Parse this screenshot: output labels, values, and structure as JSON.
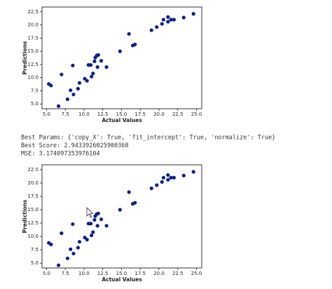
{
  "chart_data": [
    {
      "type": "scatter",
      "xlabel": "Actual Values",
      "ylabel": "Predictions",
      "color": "#0b1f8f",
      "x": [
        5.3,
        5.6,
        6.6,
        7.0,
        7.8,
        8.2,
        8.5,
        8.6,
        9.2,
        9.4,
        10.1,
        10.4,
        10.6,
        10.9,
        11.0,
        11.2,
        11.4,
        11.5,
        11.7,
        11.9,
        11.8,
        12.3,
        13.0,
        14.8,
        16.0,
        16.5,
        16.8,
        19.0,
        19.7,
        20.4,
        20.6,
        21.2,
        21.2,
        21.6,
        22.0,
        23.3,
        24.6
      ],
      "values": [
        8.8,
        8.5,
        4.6,
        10.6,
        5.9,
        7.6,
        12.3,
        6.8,
        7.9,
        9.0,
        9.8,
        9.4,
        12.4,
        12.4,
        10.2,
        10.8,
        13.1,
        13.8,
        14.2,
        14.3,
        12.0,
        13.2,
        12.0,
        15.0,
        18.3,
        16.1,
        16.3,
        19.0,
        19.6,
        20.2,
        21.0,
        21.5,
        20.6,
        21.0,
        21.0,
        21.4,
        22.1
      ],
      "xlim": [
        4.4,
        25.7
      ],
      "ylim": [
        4.1,
        23.4
      ],
      "xticks": [
        {
          "value": 5,
          "label": "5.0"
        },
        {
          "value": 7.5,
          "label": "7.5"
        },
        {
          "value": 10,
          "label": "10.0"
        },
        {
          "value": 12.5,
          "label": "12.5"
        },
        {
          "value": 15,
          "label": "15.0"
        },
        {
          "value": 17.5,
          "label": "17.5"
        },
        {
          "value": 20,
          "label": "20.0"
        },
        {
          "value": 22.5,
          "label": "22.5"
        },
        {
          "value": 25,
          "label": "25.0"
        }
      ],
      "yticks": [
        {
          "value": 5,
          "label": "5.0"
        },
        {
          "value": 7.5,
          "label": "7.5"
        },
        {
          "value": 10,
          "label": "10.0"
        },
        {
          "value": 12.5,
          "label": "12.5"
        },
        {
          "value": 15,
          "label": "15.0"
        },
        {
          "value": 17.5,
          "label": "17.5"
        },
        {
          "value": 20,
          "label": "20.0"
        },
        {
          "value": 22.5,
          "label": "22.5"
        }
      ]
    },
    {
      "type": "scatter",
      "xlabel": "Actual Values",
      "ylabel": "Predictions",
      "color": "#0b1f8f",
      "x": [
        5.3,
        5.6,
        6.6,
        7.0,
        7.8,
        8.2,
        8.5,
        8.6,
        9.2,
        9.4,
        10.1,
        10.4,
        10.6,
        10.9,
        11.0,
        11.2,
        11.4,
        11.5,
        11.7,
        11.9,
        11.8,
        12.3,
        13.0,
        14.8,
        16.0,
        16.5,
        16.8,
        19.0,
        19.7,
        20.4,
        20.6,
        21.2,
        21.2,
        21.6,
        22.0,
        23.3,
        24.6
      ],
      "values": [
        8.8,
        8.5,
        4.6,
        10.6,
        5.9,
        7.6,
        12.3,
        6.8,
        7.9,
        9.0,
        9.8,
        9.4,
        12.4,
        12.4,
        10.2,
        10.8,
        13.1,
        13.8,
        14.2,
        14.3,
        12.0,
        13.2,
        12.0,
        15.0,
        18.3,
        16.1,
        16.3,
        19.0,
        19.6,
        20.2,
        21.0,
        21.5,
        20.6,
        21.0,
        21.0,
        21.4,
        22.1
      ],
      "xlim": [
        4.4,
        25.7
      ],
      "ylim": [
        4.1,
        23.4
      ],
      "xticks": [
        {
          "value": 5,
          "label": "5.0"
        },
        {
          "value": 7.5,
          "label": "7.5"
        },
        {
          "value": 10,
          "label": "10.0"
        },
        {
          "value": 12.5,
          "label": "12.5"
        },
        {
          "value": 15,
          "label": "15.0"
        },
        {
          "value": 17.5,
          "label": "17.5"
        },
        {
          "value": 20,
          "label": "20.0"
        },
        {
          "value": 22.5,
          "label": "22.5"
        },
        {
          "value": 25,
          "label": "25.0"
        }
      ],
      "yticks": [
        {
          "value": 5,
          "label": "5.0"
        },
        {
          "value": 7.5,
          "label": "7.5"
        },
        {
          "value": 10,
          "label": "10.0"
        },
        {
          "value": 12.5,
          "label": "12.5"
        },
        {
          "value": 15,
          "label": "15.0"
        },
        {
          "value": 17.5,
          "label": "17.5"
        },
        {
          "value": 20,
          "label": "20.0"
        },
        {
          "value": 22.5,
          "label": "22.5"
        }
      ]
    }
  ],
  "output_text": [
    "Best Params: {'copy_X': True, 'fit_intercept': True, 'normalize': True}",
    "Best Score: 2.9433926025900368",
    "MSE: 3.174097353976104"
  ]
}
